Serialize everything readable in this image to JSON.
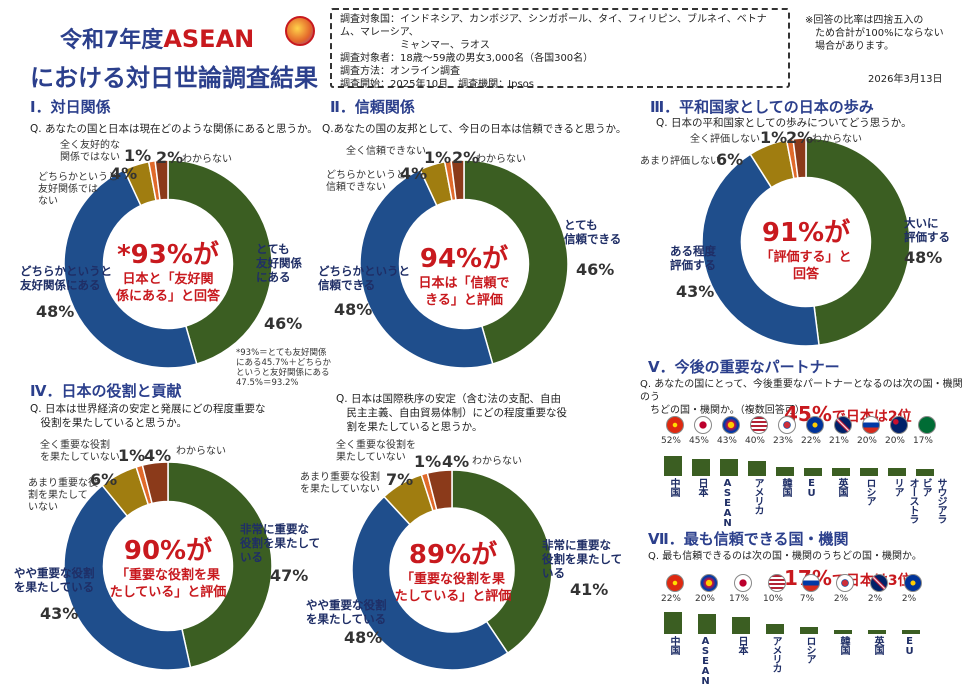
{
  "header": {
    "title_line1_pre": "令和7年度",
    "title_line1_brand": "ASEAN",
    "title_line2": "における対日世論調査結果",
    "info": [
      "調査対象国：インドネシア、カンボジア、シンガポール、タイ、フィリピン、ブルネイ、ベトナム、マレーシア、",
      "　　　　　　ミャンマー、ラオス",
      "調査対象者：18歳～59歳の男女3,000名（各国300名）",
      "調査方法：オンライン調査",
      "調査開始：2025年10月　調査機関：Ipsos"
    ],
    "note": "※回答の比率は四捨五入の\n　ため合計が100%にならない\n　場合があります。",
    "date": "2026年3月13日"
  },
  "colors": {
    "green": "#3b5e22",
    "blue": "#1f4e8c",
    "gold": "#a07d10",
    "orange": "#e06a2b",
    "brown": "#8b3a1a",
    "red": "#c8191e",
    "navy": "#2b3f8c"
  },
  "sections": {
    "s1": {
      "title": "Ⅰ．対日関係",
      "question": "Q. あなたの国と日本は現在どのような関係にあると思うか。",
      "center_big": "*93%が",
      "center_sm1": "日本と「友好関",
      "center_sm2": "係にある」と回答",
      "labels": {
        "green": "とても\n友好関係\nにある",
        "blue": "どちらかというと\n友好関係にある",
        "gold": "どちらかというと\n友好関係では\nない",
        "orange": "全く友好的な\n関係ではない",
        "brown": "わからない"
      },
      "pcts": {
        "green": "46%",
        "blue": "48%",
        "gold": "4%",
        "orange": "1%",
        "brown": "2%"
      },
      "footnote": "*93%＝とても友好関係\nにある45.7%＋どちらか\nというと友好関係にある\n47.5%＝93.2%"
    },
    "s2": {
      "title": "Ⅱ．信頼関係",
      "question": "Q.あなたの国の友邦として、今日の日本は信頼できると思うか。",
      "center_big": "94%が",
      "center_sm1": "日本は「信頼で",
      "center_sm2": "きる」と評価",
      "labels": {
        "green": "とても\n信頼できる",
        "blue": "どちらかというと\n信頼できる",
        "gold": "どちらかというと\n信頼できない",
        "orange": "全く信頼できない",
        "brown": "わからない"
      },
      "pcts": {
        "green": "46%",
        "blue": "48%",
        "gold": "4%",
        "orange": "1%",
        "brown": "2%"
      }
    },
    "s3": {
      "title": "Ⅲ．平和国家としての日本の歩み",
      "question": "Q. 日本の平和国家としての歩みについてどう思うか。",
      "center_big": "91%が",
      "center_sm1": "「評価する」と",
      "center_sm2": "回答",
      "labels": {
        "green": "大いに\n評価する",
        "blue": "ある程度\n評価する",
        "gold": "あまり評価しない",
        "orange": "全く評価しない",
        "brown": "わからない"
      },
      "pcts": {
        "green": "48%",
        "blue": "43%",
        "gold": "6%",
        "orange": "1%",
        "brown": "2%"
      }
    },
    "s4": {
      "title": "Ⅳ．日本の役割と貢献",
      "question": "Q. 日本は世界経済の安定と発展にどの程度重要な\n　役割を果たしていると思うか。",
      "center_big": "90%が",
      "center_sm1": "「重要な役割を果",
      "center_sm2": "たしている」と評価",
      "labels": {
        "green": "非常に重要な\n役割を果たして\nいる",
        "blue": "やや重要な役割\nを果たしている",
        "gold": "あまり重要な役\n割を果たして\nいない",
        "orange": "全く重要な役割\nを果たしていない",
        "brown": "わからない"
      },
      "pcts": {
        "green": "47%",
        "blue": "43%",
        "gold": "6%",
        "orange": "1%",
        "brown": "4%"
      }
    },
    "s4b": {
      "question": "Q. 日本は国際秩序の安定（含む法の支配、自由\n　民主主義、自由貿易体制）にどの程度重要な役\n　割を果たしていると思うか。",
      "center_big": "89%が",
      "center_sm1": "「重要な役割を果",
      "center_sm2": "たしている」と評価",
      "labels": {
        "green": "非常に重要な\n役割を果たして\nいる",
        "blue": "やや重要な役割\nを果たしている",
        "gold": "あまり重要な役割\nを果たしていない",
        "orange": "全く重要な役割を\n果たしていない",
        "brown": "わからない"
      },
      "pcts": {
        "green": "41%",
        "blue": "48%",
        "gold": "7%",
        "orange": "1%",
        "brown": "4%"
      }
    },
    "s5": {
      "title": "Ⅴ．今後の重要なパートナー",
      "question": "Q. あなたの国にとって、今後重要なパートナーとなるのは次の国・機関のう\n　ちどの国・機関か。（複数回答可）",
      "headline_big": "45%",
      "headline_rest": "で日本は2位"
    },
    "s6": {
      "title": "Ⅶ．最も信頼できる国・機関",
      "question": "Q. 最も信頼できるのは次の国・機関のうちどの国・機関か。",
      "headline_big": "17%",
      "headline_rest": "で日本は3位"
    }
  },
  "chart_data": [
    {
      "type": "pie",
      "title": "Ⅰ．対日関係",
      "categories": [
        "とても友好関係にある",
        "どちらかというと友好関係にある",
        "どちらかというと友好関係ではない",
        "全く友好的な関係ではない",
        "わからない"
      ],
      "values": [
        46,
        48,
        4,
        1,
        2
      ]
    },
    {
      "type": "pie",
      "title": "Ⅱ．信頼関係",
      "categories": [
        "とても信頼できる",
        "どちらかというと信頼できる",
        "どちらかというと信頼できない",
        "全く信頼できない",
        "わからない"
      ],
      "values": [
        46,
        48,
        4,
        1,
        2
      ]
    },
    {
      "type": "pie",
      "title": "Ⅲ．平和国家としての日本の歩み",
      "categories": [
        "大いに評価する",
        "ある程度評価する",
        "あまり評価しない",
        "全く評価しない",
        "わからない"
      ],
      "values": [
        48,
        43,
        6,
        1,
        2
      ]
    },
    {
      "type": "pie",
      "title": "Ⅳ．日本の役割と貢献（世界経済）",
      "categories": [
        "非常に重要な役割を果たしている",
        "やや重要な役割を果たしている",
        "あまり重要な役割を果たしていない",
        "全く重要な役割を果たしていない",
        "わからない"
      ],
      "values": [
        47,
        43,
        6,
        1,
        4
      ]
    },
    {
      "type": "pie",
      "title": "Ⅳ．日本の役割と貢献（国際秩序）",
      "categories": [
        "非常に重要な役割を果たしている",
        "やや重要な役割を果たしている",
        "あまり重要な役割を果たしていない",
        "全く重要な役割を果たしていない",
        "わからない"
      ],
      "values": [
        41,
        48,
        7,
        1,
        4
      ]
    },
    {
      "type": "bar",
      "title": "Ⅴ．今後の重要なパートナー",
      "categories": [
        "中国",
        "日本",
        "ASEAN",
        "アメリカ",
        "韓国",
        "EU",
        "英国",
        "ロシア",
        "オーストラリア",
        "サウジアラビア"
      ],
      "values": [
        52,
        45,
        43,
        40,
        23,
        22,
        21,
        20,
        20,
        17
      ]
    },
    {
      "type": "bar",
      "title": "Ⅶ．最も信頼できる国・機関",
      "categories": [
        "中国",
        "ASEAN",
        "日本",
        "アメリカ",
        "ロシア",
        "韓国",
        "英国",
        "EU"
      ],
      "values": [
        22,
        20,
        17,
        10,
        7,
        2,
        2,
        2
      ]
    }
  ]
}
